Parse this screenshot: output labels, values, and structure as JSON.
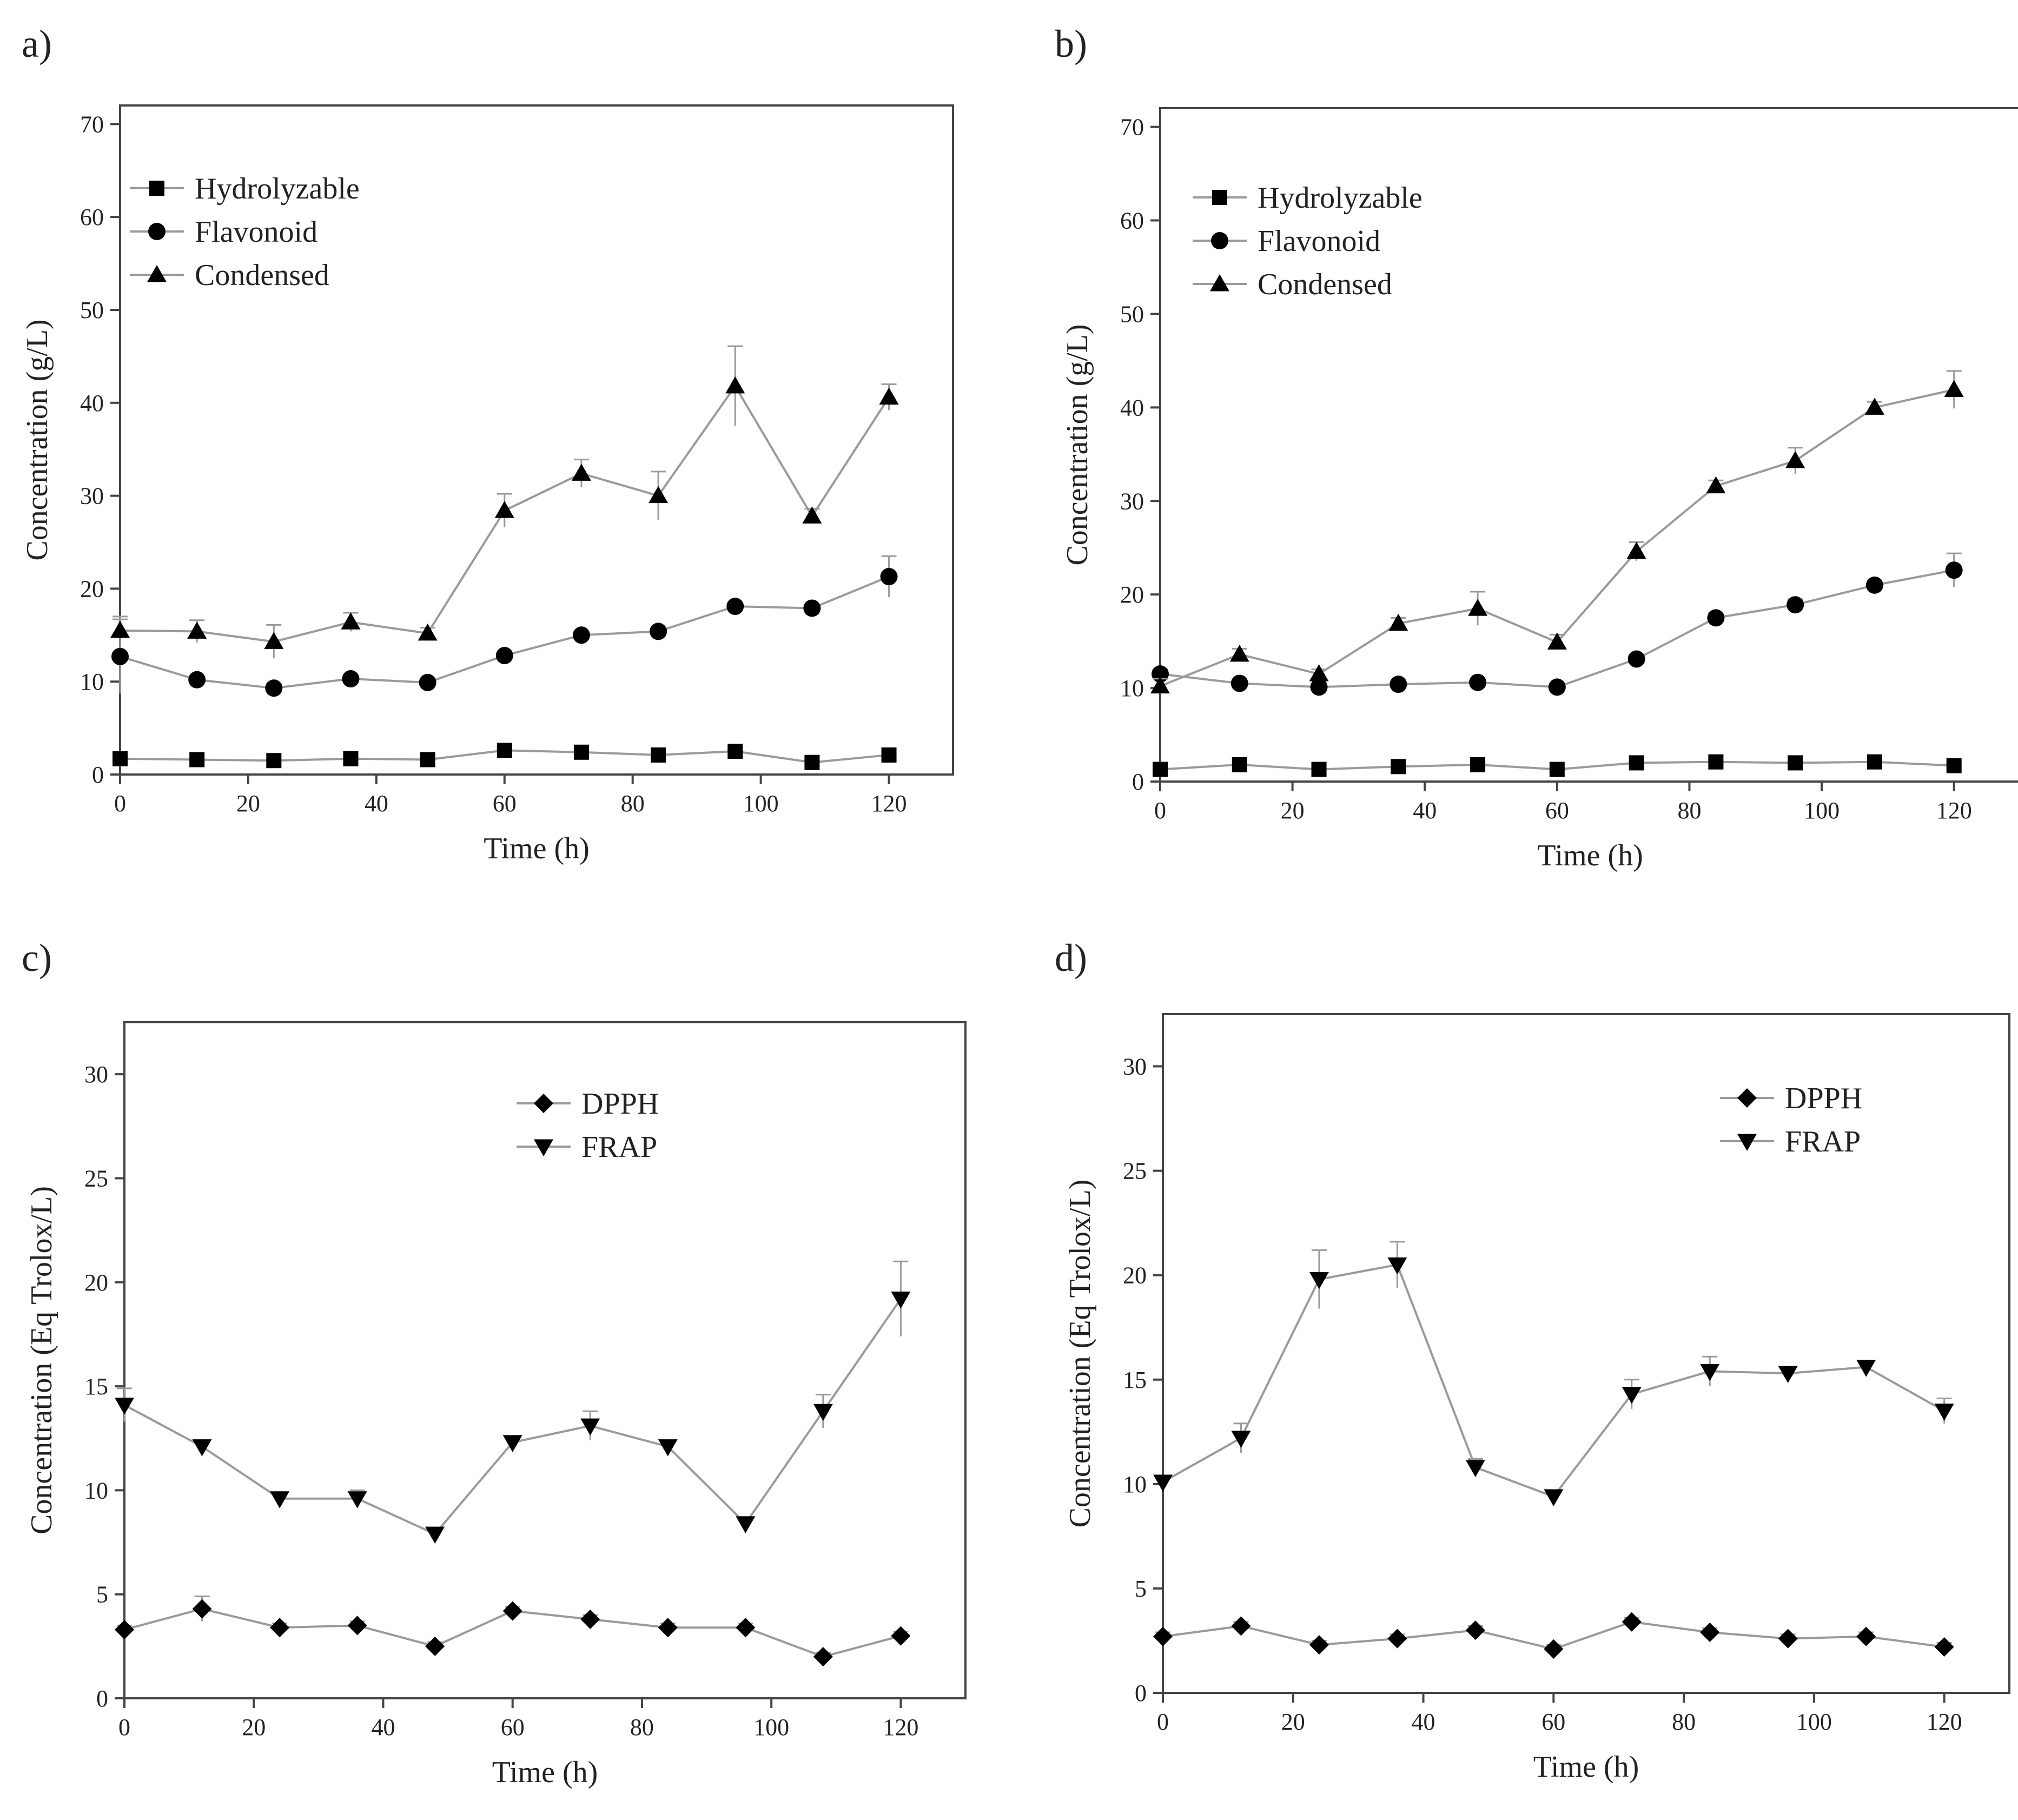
{
  "figure": {
    "style": {
      "line_color": "#9a9a9a",
      "marker_color": "#000000",
      "axis_color": "#444444",
      "text_color": "#222222",
      "background": "#ffffff"
    },
    "panels": [
      {
        "label": "a)",
        "chart_data": {
          "type": "line",
          "xlabel": "Time (h)",
          "ylabel": "Concentration (g/L)",
          "xlim": [
            0,
            130
          ],
          "ylim": [
            0,
            72
          ],
          "xticks": [
            0,
            20,
            40,
            60,
            80,
            100,
            120
          ],
          "yticks": [
            0,
            10,
            20,
            30,
            40,
            50,
            60,
            70
          ],
          "grid": false,
          "legend": "top-left",
          "x": [
            0,
            12,
            24,
            36,
            48,
            60,
            72,
            84,
            96,
            108,
            120
          ],
          "series": [
            {
              "name": "Hydrolyzable",
              "marker": "square-icon",
              "values": [
                1.7,
                1.6,
                1.5,
                1.7,
                1.6,
                2.6,
                2.4,
                2.1,
                2.5,
                1.3,
                2.1
              ],
              "errors": [
                0.3,
                0.2,
                0.2,
                0.2,
                0.2,
                0.3,
                0.2,
                0.2,
                0.3,
                0.2,
                0.2
              ]
            },
            {
              "name": "Flavonoid",
              "marker": "circle-icon",
              "values": [
                12.7,
                10.2,
                9.3,
                10.3,
                9.9,
                12.8,
                15.0,
                15.4,
                18.1,
                17.9,
                21.3
              ],
              "errors": [
                4.0,
                0.4,
                0.5,
                0.3,
                0.3,
                0.4,
                0.4,
                0.4,
                0.4,
                0.4,
                2.2
              ]
            },
            {
              "name": "Condensed",
              "marker": "triangle-up-icon",
              "values": [
                15.5,
                15.4,
                14.3,
                16.4,
                15.2,
                28.4,
                32.4,
                30.0,
                41.8,
                27.8,
                40.6
              ],
              "errors": [
                1.5,
                1.2,
                1.8,
                1.0,
                0.6,
                1.8,
                1.5,
                2.6,
                4.3,
                0.8,
                1.4
              ]
            }
          ]
        }
      },
      {
        "label": "b)",
        "chart_data": {
          "type": "line",
          "xlabel": "Time (h)",
          "ylabel": "Concentration (g/L)",
          "xlim": [
            0,
            130
          ],
          "ylim": [
            0,
            72
          ],
          "xticks": [
            0,
            20,
            40,
            60,
            80,
            100,
            120
          ],
          "yticks": [
            0,
            10,
            20,
            30,
            40,
            50,
            60,
            70
          ],
          "grid": false,
          "legend": "top-left",
          "x": [
            0,
            12,
            24,
            36,
            48,
            60,
            72,
            84,
            96,
            108,
            120
          ],
          "series": [
            {
              "name": "Hydrolyzable",
              "marker": "square-icon",
              "values": [
                1.3,
                1.8,
                1.3,
                1.6,
                1.8,
                1.3,
                2.0,
                2.1,
                2.0,
                2.1,
                1.7
              ],
              "errors": [
                0.2,
                0.2,
                0.2,
                0.2,
                0.2,
                0.2,
                0.2,
                0.2,
                0.2,
                0.2,
                0.2
              ]
            },
            {
              "name": "Flavonoid",
              "marker": "circle-icon",
              "values": [
                11.5,
                10.5,
                10.1,
                10.4,
                10.6,
                10.1,
                13.1,
                17.5,
                18.9,
                21.0,
                22.6
              ],
              "errors": [
                0.5,
                0.4,
                0.3,
                0.3,
                0.4,
                0.3,
                0.4,
                0.5,
                0.6,
                0.5,
                1.8
              ]
            },
            {
              "name": "Condensed",
              "marker": "triangle-up-icon",
              "values": [
                10.2,
                13.6,
                11.5,
                16.9,
                18.5,
                14.9,
                24.6,
                31.6,
                34.3,
                40.0,
                41.9
              ],
              "errors": [
                0.8,
                0.6,
                0.5,
                0.6,
                1.8,
                0.8,
                1.0,
                0.6,
                1.4,
                0.6,
                2.0
              ]
            }
          ]
        }
      },
      {
        "label": "c)",
        "chart_data": {
          "type": "line",
          "xlabel": "Time (h)",
          "ylabel": "Concentration (Eq Trolox/L)",
          "xlim": [
            0,
            130
          ],
          "ylim": [
            0,
            32.5
          ],
          "xticks": [
            0,
            20,
            40,
            60,
            80,
            100,
            120
          ],
          "yticks": [
            0,
            5,
            10,
            15,
            20,
            25,
            30
          ],
          "grid": false,
          "legend": "top-right",
          "x": [
            0,
            12,
            24,
            36,
            48,
            60,
            72,
            84,
            96,
            108,
            120
          ],
          "series": [
            {
              "name": "DPPH",
              "marker": "diamond-icon",
              "values": [
                3.3,
                4.3,
                3.4,
                3.5,
                2.5,
                4.2,
                3.8,
                3.4,
                3.4,
                2.0,
                3.0
              ],
              "errors": [
                0.2,
                0.6,
                0.2,
                0.2,
                0.2,
                0.2,
                0.2,
                0.2,
                0.2,
                0.2,
                0.2
              ]
            },
            {
              "name": "FRAP",
              "marker": "triangle-down-icon",
              "values": [
                14.1,
                12.1,
                9.6,
                9.6,
                7.9,
                12.3,
                13.1,
                12.1,
                8.4,
                13.8,
                19.2
              ],
              "errors": [
                0.8,
                0.3,
                0.3,
                0.4,
                0.3,
                0.3,
                0.7,
                0.3,
                0.3,
                0.8,
                1.8
              ]
            }
          ]
        }
      },
      {
        "label": "d)",
        "chart_data": {
          "type": "line",
          "xlabel": "Time (h)",
          "ylabel": "Concentration (Eq Trolox/L)",
          "xlim": [
            0,
            130
          ],
          "ylim": [
            0,
            32.5
          ],
          "xticks": [
            0,
            20,
            40,
            60,
            80,
            100,
            120
          ],
          "yticks": [
            0,
            5,
            10,
            15,
            20,
            25,
            30
          ],
          "grid": false,
          "legend": "top-right",
          "x": [
            0,
            12,
            24,
            36,
            48,
            60,
            72,
            84,
            96,
            108,
            120
          ],
          "series": [
            {
              "name": "DPPH",
              "marker": "diamond-icon",
              "values": [
                2.7,
                3.2,
                2.3,
                2.6,
                3.0,
                2.1,
                3.4,
                2.9,
                2.6,
                2.7,
                2.2
              ],
              "errors": [
                0.2,
                0.2,
                0.2,
                0.2,
                0.2,
                0.2,
                0.2,
                0.2,
                0.2,
                0.2,
                0.2
              ]
            },
            {
              "name": "FRAP",
              "marker": "triangle-down-icon",
              "values": [
                10.1,
                12.2,
                19.8,
                20.5,
                10.8,
                9.4,
                14.3,
                15.4,
                15.3,
                15.6,
                13.5
              ],
              "errors": [
                0.3,
                0.7,
                1.4,
                1.1,
                0.4,
                0.3,
                0.7,
                0.7,
                0.3,
                0.3,
                0.6
              ]
            }
          ]
        }
      }
    ]
  }
}
